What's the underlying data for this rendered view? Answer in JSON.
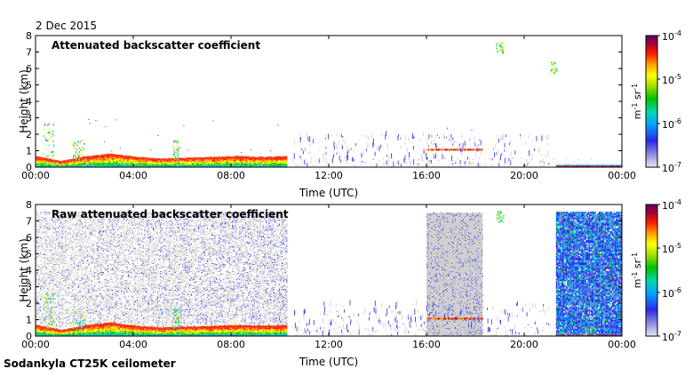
{
  "header": {
    "date": "2 Dec 2015"
  },
  "footer": {
    "instrument": "Sodankyla CT25K ceilometer"
  },
  "colors": {
    "background": "#ffffff",
    "no_signal": "#cfcfcf",
    "colormap": [
      "#e6e6f4",
      "#8a8ae0",
      "#2a2ae8",
      "#00a0ff",
      "#00d8b0",
      "#00c000",
      "#a8e000",
      "#ffff00",
      "#ffa000",
      "#ff2000",
      "#b00030",
      "#600060"
    ]
  },
  "chart_data": [
    {
      "type": "heatmap",
      "title": "Attenuated backscatter coefficient",
      "xlabel": "Time (UTC)",
      "ylabel": "Height (km)",
      "xticks": [
        "00:00",
        "04:00",
        "08:00",
        "12:00",
        "16:00",
        "20:00",
        "00:00"
      ],
      "xlim_hours": [
        0,
        24
      ],
      "ylim_km": [
        0,
        8
      ],
      "yticks": [
        "0",
        "1",
        "2",
        "3",
        "4",
        "5",
        "6",
        "7",
        "8"
      ],
      "colorbar": {
        "ticks": [
          "10",
          "10",
          "10",
          "10"
        ],
        "exponents": [
          "-4",
          "-5",
          "-6",
          "-7"
        ],
        "unit": "m",
        "unit_exp1": "-1",
        "unit_mid": " sr",
        "unit_exp2": "-1",
        "scale": "log",
        "range": [
          1e-07,
          0.0001
        ]
      },
      "features": [
        {
          "kind": "boundary_layer",
          "time_h": [
            0,
            10.3
          ],
          "top_km": [
            0.6,
            0.3,
            0.6,
            0.75,
            0.55,
            0.45,
            0.5,
            0.55,
            0.6,
            0.55,
            0.6
          ]
        },
        {
          "kind": "cloud_layer",
          "time_h": [
            16.0,
            18.3
          ],
          "height_km": 1.05
        },
        {
          "kind": "cloud_patch",
          "time_h": 19.0,
          "height_km": 7.2
        },
        {
          "kind": "cloud_patch",
          "time_h": 21.2,
          "height_km": 6.0
        },
        {
          "kind": "surface_layer",
          "time_h": [
            21.3,
            24
          ],
          "height_km": 0.1
        }
      ]
    },
    {
      "type": "heatmap",
      "title": "Raw attenuated backscatter coefficient",
      "xlabel": "Time (UTC)",
      "ylabel": "Height (km)",
      "xticks": [
        "00:00",
        "04:00",
        "08:00",
        "12:00",
        "16:00",
        "20:00",
        "00:00"
      ],
      "xlim_hours": [
        0,
        24
      ],
      "ylim_km": [
        0,
        8
      ],
      "yticks": [
        "0",
        "1",
        "2",
        "3",
        "4",
        "5",
        "6",
        "7",
        "8"
      ],
      "colorbar": {
        "ticks": [
          "10",
          "10",
          "10",
          "10"
        ],
        "exponents": [
          "-4",
          "-5",
          "-6",
          "-7"
        ],
        "unit": "m",
        "unit_exp1": "-1",
        "unit_mid": " sr",
        "unit_exp2": "-1",
        "scale": "log",
        "range": [
          1e-07,
          0.0001
        ]
      },
      "features": [
        {
          "kind": "noise_background",
          "time_h": [
            0,
            10.3
          ],
          "height_km": [
            0,
            7.5
          ]
        },
        {
          "kind": "boundary_layer",
          "time_h": [
            0,
            10.3
          ],
          "top_km": [
            0.6,
            0.3,
            0.6,
            0.75,
            0.55,
            0.45,
            0.5,
            0.55,
            0.6,
            0.55,
            0.6
          ]
        },
        {
          "kind": "no_signal_block",
          "time_h": [
            16.0,
            18.3
          ],
          "height_km": [
            0,
            7.5
          ]
        },
        {
          "kind": "cloud_layer",
          "time_h": [
            16.0,
            18.3
          ],
          "height_km": 1.05
        },
        {
          "kind": "cloud_patch",
          "time_h": 19.0,
          "height_km": 7.2
        },
        {
          "kind": "high_noise_block",
          "time_h": [
            21.3,
            24
          ],
          "height_km": [
            0,
            7.5
          ]
        },
        {
          "kind": "surface_layer",
          "time_h": [
            21.3,
            24
          ],
          "height_km": 0.1
        }
      ]
    }
  ]
}
